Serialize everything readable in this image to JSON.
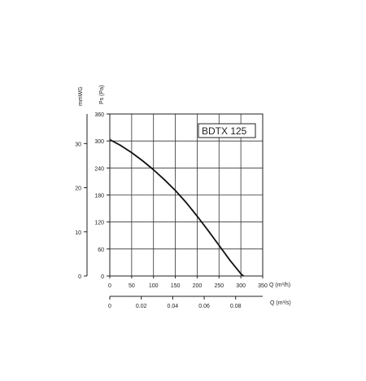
{
  "chart_data": {
    "type": "line",
    "model_label": "BDTX 125",
    "x_axis": {
      "label": "Q (m³/h)",
      "range": [
        0,
        350
      ],
      "ticks": [
        0,
        50,
        100,
        150,
        200,
        250,
        300,
        350
      ]
    },
    "x2_axis": {
      "label": "Q (m³/s)",
      "range": [
        0,
        0.0972
      ],
      "ticks": [
        "0",
        "0.02",
        "0.04",
        "0.06",
        "0.08"
      ],
      "tick_values": [
        0,
        0.02,
        0.04,
        0.06,
        0.08
      ]
    },
    "y_axis": {
      "label": "Ps (Pa)",
      "range": [
        0,
        360
      ],
      "ticks": [
        0,
        60,
        120,
        180,
        240,
        300,
        360
      ]
    },
    "y2_axis": {
      "label": "mmWG",
      "range": [
        0,
        36.7
      ],
      "ticks": [
        0,
        10,
        20,
        30
      ]
    },
    "grid": true,
    "series": [
      {
        "color": "#111111",
        "x": [
          0,
          25,
          50,
          75,
          100,
          125,
          150,
          175,
          200,
          225,
          250,
          275,
          300,
          306
        ],
        "y": [
          303,
          290,
          274,
          256,
          236,
          214,
          190,
          163,
          133,
          101,
          68,
          35,
          5,
          0
        ]
      }
    ]
  }
}
